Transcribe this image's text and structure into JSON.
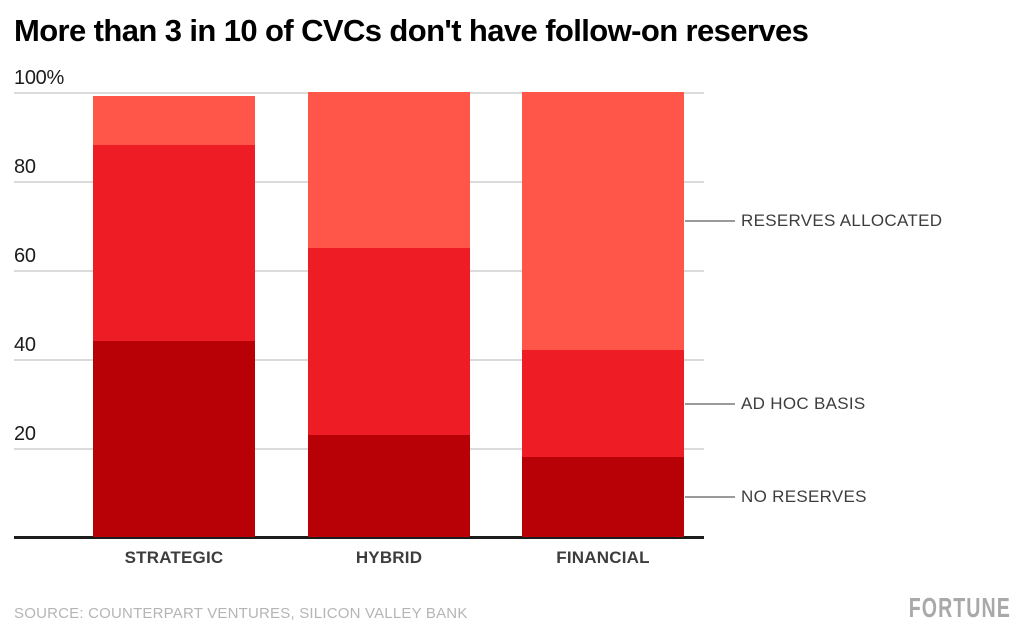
{
  "chart_data": {
    "type": "bar",
    "stacked": true,
    "title": "More than 3 in 10 of CVCs don't have follow-on reserves",
    "categories": [
      "STRATEGIC",
      "HYBRID",
      "FINANCIAL"
    ],
    "series": [
      {
        "name": "NO RESERVES",
        "values": [
          44,
          23,
          18
        ],
        "color": "#b80007"
      },
      {
        "name": "AD HOC BASIS",
        "values": [
          44,
          42,
          24
        ],
        "color": "#ee1c24"
      },
      {
        "name": "RESERVES ALLOCATED",
        "values": [
          11,
          35,
          58
        ],
        "color": "#ff5649"
      }
    ],
    "stack_totals": [
      99,
      100,
      100
    ],
    "xlabel": "",
    "ylabel": "",
    "ylim": [
      0,
      100
    ],
    "yticks": [
      {
        "value": 100,
        "label": "100%"
      },
      {
        "value": 80,
        "label": "80"
      },
      {
        "value": 60,
        "label": "60"
      },
      {
        "value": 40,
        "label": "40"
      },
      {
        "value": 20,
        "label": "20"
      }
    ],
    "grid": true,
    "legend_position": "right-annotations",
    "annotations": [
      {
        "label": "RESERVES ALLOCATED",
        "series": "RESERVES ALLOCATED"
      },
      {
        "label": "AD HOC BASIS",
        "series": "AD HOC BASIS"
      },
      {
        "label": "NO RESERVES",
        "series": "NO RESERVES"
      }
    ]
  },
  "colors": {
    "no_reserves": "#b80007",
    "ad_hoc_basis": "#ee1c24",
    "reserves_allocated": "#ff5649",
    "gridline": "#dbdbdb",
    "axis": "#1c1c1c",
    "label_gray": "#3d3d3d",
    "source_gray": "#b5b5b5",
    "brand_gray": "#a9a9a9"
  },
  "footer": {
    "source": "SOURCE: COUNTERPART VENTURES, SILICON VALLEY BANK",
    "brand": "FORTUNE"
  }
}
